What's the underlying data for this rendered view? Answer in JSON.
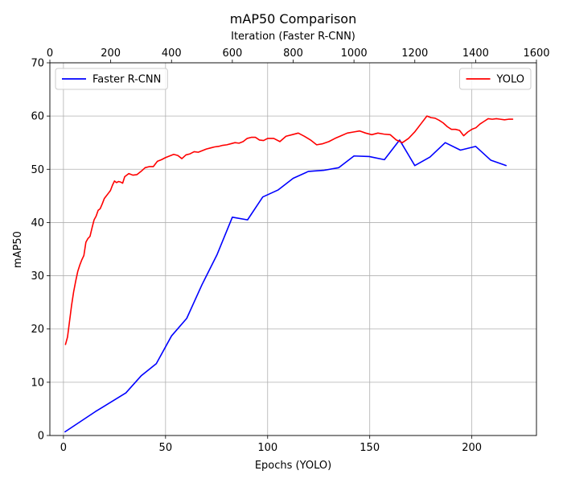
{
  "chart_data": {
    "type": "line",
    "title": "mAP50 Comparison",
    "xlabel_bottom": "Epochs (YOLO)",
    "xlabel_top": "Iteration (Faster R-CNN)",
    "ylabel": "mAP50",
    "xlim_bottom": [
      -6.65,
      231.65
    ],
    "xlim_top": [
      0,
      1600
    ],
    "ylim": [
      0,
      70
    ],
    "xticks_bottom": [
      0,
      50,
      100,
      150,
      200
    ],
    "xticks_top": [
      0,
      200,
      400,
      600,
      800,
      1000,
      1200,
      1400,
      1600
    ],
    "yticks": [
      0,
      10,
      20,
      30,
      40,
      50,
      60,
      70
    ],
    "grid": true,
    "series": [
      {
        "name": "Faster R-CNN",
        "color": "#0000ff",
        "axis": "top",
        "legend_position": "upper-left",
        "x": [
          50,
          150,
          250,
          300,
          350,
          400,
          450,
          500,
          550,
          600,
          650,
          700,
          750,
          800,
          850,
          900,
          950,
          1000,
          1050,
          1100,
          1150,
          1200,
          1250,
          1300,
          1350,
          1400,
          1450,
          1500
        ],
        "y": [
          0.7,
          4.5,
          8.0,
          11.2,
          13.5,
          18.7,
          22.0,
          28.3,
          34.0,
          41.0,
          40.5,
          44.8,
          46.1,
          48.3,
          49.6,
          49.8,
          50.3,
          52.5,
          52.4,
          51.8,
          55.5,
          50.7,
          52.3,
          55.0,
          53.6,
          54.3,
          51.7,
          50.7
        ]
      },
      {
        "name": "YOLO",
        "color": "#ff0000",
        "axis": "bottom",
        "legend_position": "upper-right",
        "x": [
          1,
          2,
          3,
          4,
          5,
          6,
          7,
          8,
          9,
          10,
          11,
          12,
          13,
          14,
          15,
          16,
          17,
          18,
          19,
          20,
          21,
          22,
          23,
          24,
          25,
          26,
          27,
          28,
          29,
          30,
          32,
          34,
          36,
          38,
          40,
          42,
          44,
          46,
          48,
          50,
          52,
          54,
          56,
          58,
          60,
          62,
          64,
          66,
          68,
          70,
          72,
          74,
          76,
          78,
          80,
          82,
          84,
          86,
          88,
          90,
          92,
          94,
          96,
          98,
          100,
          103,
          106,
          109,
          112,
          115,
          118,
          121,
          124,
          127,
          130,
          133,
          136,
          139,
          142,
          145,
          148,
          151,
          154,
          157,
          160,
          163,
          166,
          169,
          172,
          175,
          178,
          180,
          182,
          184,
          186,
          188,
          190,
          192,
          194,
          196,
          198,
          200,
          202,
          204,
          206,
          208,
          210,
          212,
          214,
          216,
          218,
          220
        ],
        "y": [
          17.1,
          18.5,
          21.5,
          24.5,
          27.0,
          29.0,
          30.8,
          32.0,
          33.0,
          33.8,
          36.3,
          37.0,
          37.4,
          39.0,
          40.5,
          41.2,
          42.3,
          42.6,
          43.5,
          44.5,
          45.0,
          45.5,
          46.0,
          47.0,
          47.8,
          47.5,
          47.7,
          47.6,
          47.4,
          48.6,
          49.2,
          48.9,
          49.0,
          49.6,
          50.3,
          50.5,
          50.5,
          51.5,
          51.8,
          52.2,
          52.5,
          52.8,
          52.6,
          52.0,
          52.7,
          52.9,
          53.3,
          53.2,
          53.5,
          53.8,
          54.0,
          54.2,
          54.3,
          54.5,
          54.6,
          54.8,
          55.0,
          54.9,
          55.2,
          55.8,
          56.0,
          56.0,
          55.5,
          55.4,
          55.8,
          55.8,
          55.2,
          56.2,
          56.5,
          56.8,
          56.2,
          55.5,
          54.6,
          54.8,
          55.2,
          55.8,
          56.3,
          56.8,
          57.0,
          57.2,
          56.8,
          56.5,
          56.8,
          56.6,
          56.5,
          55.5,
          55.0,
          55.8,
          57.0,
          58.5,
          60.0,
          59.7,
          59.6,
          59.2,
          58.7,
          58.0,
          57.5,
          57.5,
          57.3,
          56.3,
          57.0,
          57.5,
          57.8,
          58.5,
          59.0,
          59.5,
          59.4,
          59.5,
          59.4,
          59.3,
          59.4,
          59.4
        ]
      }
    ]
  }
}
